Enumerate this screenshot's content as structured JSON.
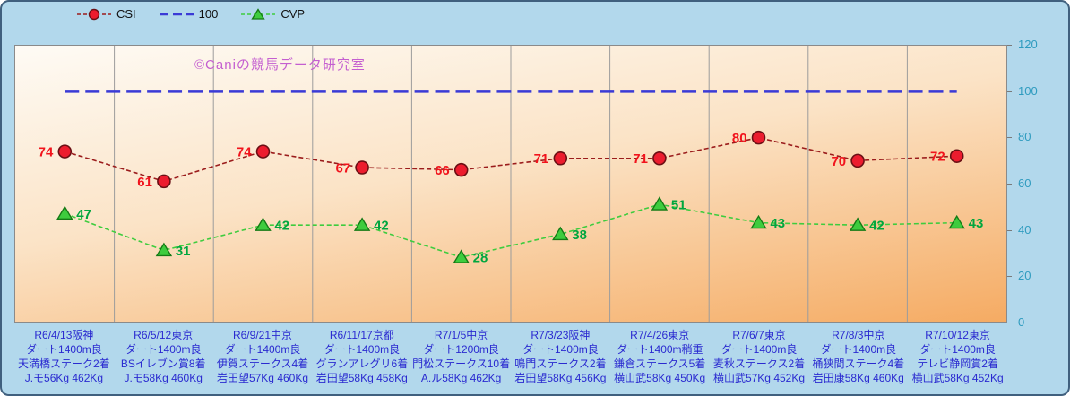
{
  "watermark": "©Caniの競馬データ研究室",
  "legend": {
    "csi_label": "CSI",
    "hundred_label": "100",
    "cvp_label": "CVP"
  },
  "colors": {
    "frame_background": "#b2d8ec",
    "csi_line": "#9b1c1c",
    "csi_marker_fill": "#ec1c2e",
    "csi_label_text": "#f1131c",
    "reference_line": "#3a3ad6",
    "cvp_line": "#3ecc3e",
    "cvp_marker_fill": "#3ecc3e",
    "cvp_label_text": "#00a63e",
    "y_axis_text": "#2e9bbf",
    "x_axis_text": "#2a2ad0",
    "watermark_text": "#c45fd0"
  },
  "chart_data": {
    "type": "line",
    "title": "",
    "xlabel": "",
    "ylabel": "",
    "ylim": [
      0,
      120
    ],
    "yticks": [
      0,
      20,
      40,
      60,
      80,
      100,
      120
    ],
    "grid": "vertical-only",
    "legend_position": "top-left",
    "reference_line": {
      "name": "100",
      "value": 100,
      "color": "#3a3ad6"
    },
    "categories": [
      [
        "R6/4/13阪神",
        "ダート1400m良",
        "天満橋ステーク2着",
        "J.モ56Kg 462Kg"
      ],
      [
        "R6/5/12東京",
        "ダート1400m良",
        "BSイレブン賞8着",
        "J.モ58Kg 460Kg"
      ],
      [
        "R6/9/21中京",
        "ダート1400m良",
        "伊賀ステークス4着",
        "岩田望57Kg 460Kg"
      ],
      [
        "R6/11/17京都",
        "ダート1400m良",
        "グランアレグリ6着",
        "岩田望58Kg 458Kg"
      ],
      [
        "R7/1/5中京",
        "ダート1200m良",
        "門松ステークス10着",
        "A.ル58Kg 462Kg"
      ],
      [
        "R7/3/23阪神",
        "ダート1400m良",
        "鳴門ステークス2着",
        "岩田望58Kg 456Kg"
      ],
      [
        "R7/4/26東京",
        "ダート1400m稍重",
        "鎌倉ステークス5着",
        "横山武58Kg 450Kg"
      ],
      [
        "R7/6/7東京",
        "ダート1400m良",
        "麦秋ステークス2着",
        "横山武57Kg 452Kg"
      ],
      [
        "R7/8/3中京",
        "ダート1400m良",
        "桶狭間ステーク4着",
        "岩田康58Kg 460Kg"
      ],
      [
        "R7/10/12東京",
        "ダート1400m良",
        "テレビ静岡賞2着",
        "横山武58Kg 452Kg"
      ]
    ],
    "series": [
      {
        "name": "CSI",
        "marker": "circle",
        "values": [
          74,
          61,
          74,
          67,
          66,
          71,
          71,
          80,
          70,
          72
        ]
      },
      {
        "name": "CVP",
        "marker": "triangle",
        "values": [
          47,
          31,
          42,
          42,
          28,
          38,
          51,
          43,
          42,
          43
        ]
      }
    ]
  }
}
